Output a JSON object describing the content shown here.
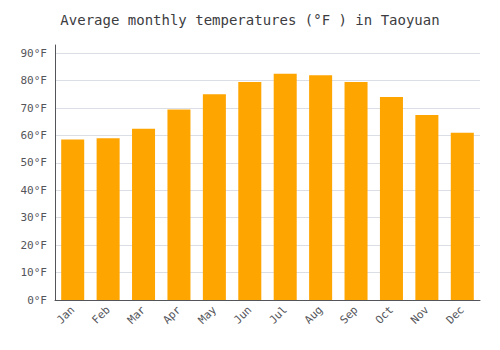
{
  "chart_data": {
    "type": "bar",
    "title": "Average monthly temperatures (°F ) in Taoyuan",
    "categories": [
      "Jan",
      "Feb",
      "Mar",
      "Apr",
      "May",
      "Jun",
      "Jul",
      "Aug",
      "Sep",
      "Oct",
      "Nov",
      "Dec"
    ],
    "values": [
      58.5,
      59,
      62.5,
      69.5,
      75,
      79.5,
      82.5,
      82,
      79.5,
      74,
      67.5,
      61
    ],
    "color": "#FFA500",
    "ylim": [
      0,
      93
    ],
    "yticks": [
      {
        "value": 0,
        "label": "0°F"
      },
      {
        "value": 10,
        "label": "10°F"
      },
      {
        "value": 20,
        "label": "20°F"
      },
      {
        "value": 30,
        "label": "30°F"
      },
      {
        "value": 40,
        "label": "40°F"
      },
      {
        "value": 50,
        "label": "50°F"
      },
      {
        "value": 60,
        "label": "60°F"
      },
      {
        "value": 70,
        "label": "70°F"
      },
      {
        "value": 80,
        "label": "80°F"
      },
      {
        "value": 90,
        "label": "90°F"
      }
    ],
    "grid": true
  }
}
